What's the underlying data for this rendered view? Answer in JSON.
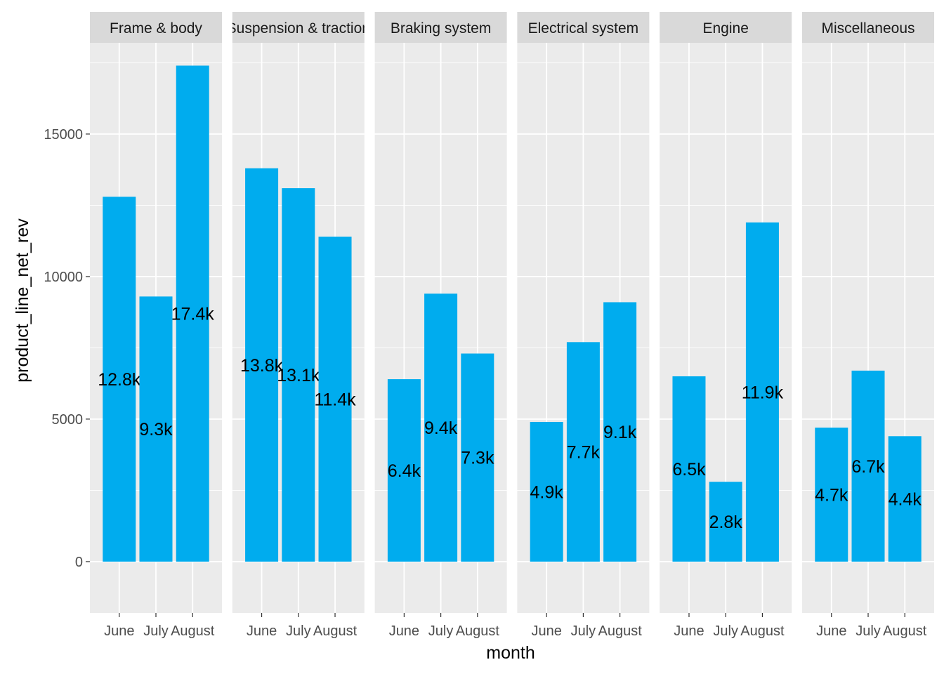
{
  "chart_data": {
    "type": "bar",
    "facet_by": "product_line",
    "xlabel": "month",
    "ylabel": "product_line_net_rev",
    "categories": [
      "June",
      "July",
      "August"
    ],
    "ylim": [
      -1800,
      18200
    ],
    "yticks": [
      0,
      5000,
      10000,
      15000
    ],
    "ytick_labels": [
      "0",
      "5000",
      "10000",
      "15000"
    ],
    "grid": true,
    "bar_color": "#00ACEE",
    "panel_bg": "#EBEBEB",
    "strip_bg": "#D9D9D9",
    "facets": [
      {
        "name": "Frame & body",
        "values": [
          12800,
          9300,
          17400
        ],
        "labels": [
          "12.8k",
          "9.3k",
          "17.4k"
        ]
      },
      {
        "name": "Suspension & traction",
        "values": [
          13800,
          13100,
          11400
        ],
        "labels": [
          "13.8k",
          "13.1k",
          "11.4k"
        ]
      },
      {
        "name": "Braking system",
        "values": [
          6400,
          9400,
          7300
        ],
        "labels": [
          "6.4k",
          "9.4k",
          "7.3k"
        ]
      },
      {
        "name": "Electrical system",
        "values": [
          4900,
          7700,
          9100
        ],
        "labels": [
          "4.9k",
          "7.7k",
          "9.1k"
        ]
      },
      {
        "name": "Engine",
        "values": [
          6500,
          2800,
          11900
        ],
        "labels": [
          "6.5k",
          "2.8k",
          "11.9k"
        ]
      },
      {
        "name": "Miscellaneous",
        "values": [
          4700,
          6700,
          4400
        ],
        "labels": [
          "4.7k",
          "6.7k",
          "4.4k"
        ]
      }
    ]
  }
}
